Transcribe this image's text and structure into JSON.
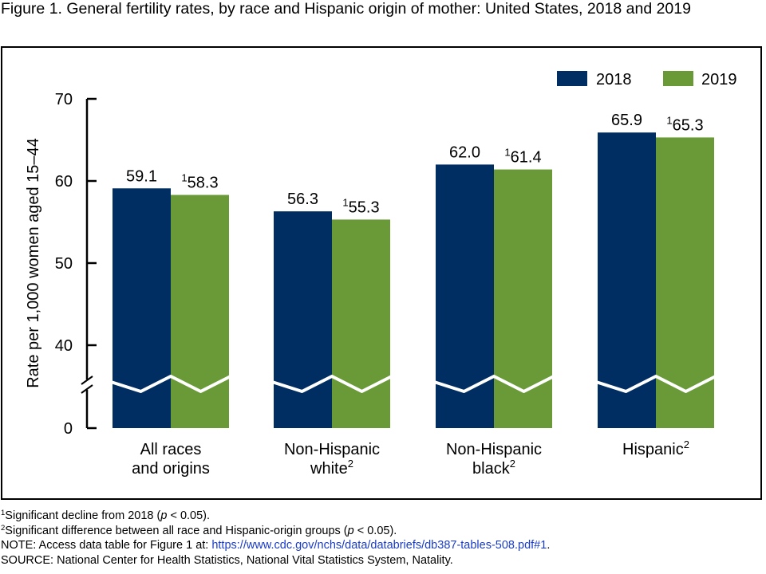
{
  "title": "Figure 1. General fertility rates, by race and Hispanic origin of mother: United States, 2018 and 2019",
  "chart_data": {
    "type": "bar",
    "categories": [
      {
        "lines": [
          "All races",
          "and origins"
        ],
        "sup": ""
      },
      {
        "lines": [
          "Non-Hispanic",
          "white"
        ],
        "sup": "2"
      },
      {
        "lines": [
          "Non-Hispanic",
          "black"
        ],
        "sup": "2"
      },
      {
        "lines": [
          "Hispanic"
        ],
        "sup": "2"
      }
    ],
    "series": [
      {
        "name": "2018",
        "color": "#002d62",
        "values": [
          59.1,
          56.3,
          62.0,
          65.9
        ],
        "labels": [
          "59.1",
          "56.3",
          "62.0",
          "65.9"
        ],
        "label_sups": [
          "",
          "",
          "",
          ""
        ]
      },
      {
        "name": "2019",
        "color": "#6a9a37",
        "values": [
          58.3,
          55.3,
          61.4,
          65.3
        ],
        "labels": [
          "58.3",
          "55.3",
          "61.4",
          "65.3"
        ],
        "label_sups": [
          "1",
          "1",
          "1",
          "1"
        ]
      }
    ],
    "ylabel": "Rate per 1,000 women aged 15–44",
    "xlabel": "",
    "yticks": [
      "70",
      "60",
      "50",
      "40",
      "0"
    ],
    "ylim": [
      0,
      70
    ],
    "axis_break": true,
    "legend_position": "top-right",
    "grid": false
  },
  "footnotes": {
    "fn1_marker": "1",
    "fn1_pre": "Significant decline from 2018 (",
    "fn1_italic": "p",
    "fn1_post": " < 0.05).",
    "fn2_marker": "2",
    "fn2_pre": "Significant difference between all race and Hispanic-origin groups (",
    "fn2_italic": "p",
    "fn2_post": " < 0.05).",
    "note_pre": "NOTE: Access data table for Figure 1 at: ",
    "note_link": "https://www.cdc.gov/nchs/data/databriefs/db387-tables-508.pdf#1",
    "note_post": ".",
    "source": "SOURCE: National Center for Health Statistics, National Vital Statistics System, Natality."
  }
}
